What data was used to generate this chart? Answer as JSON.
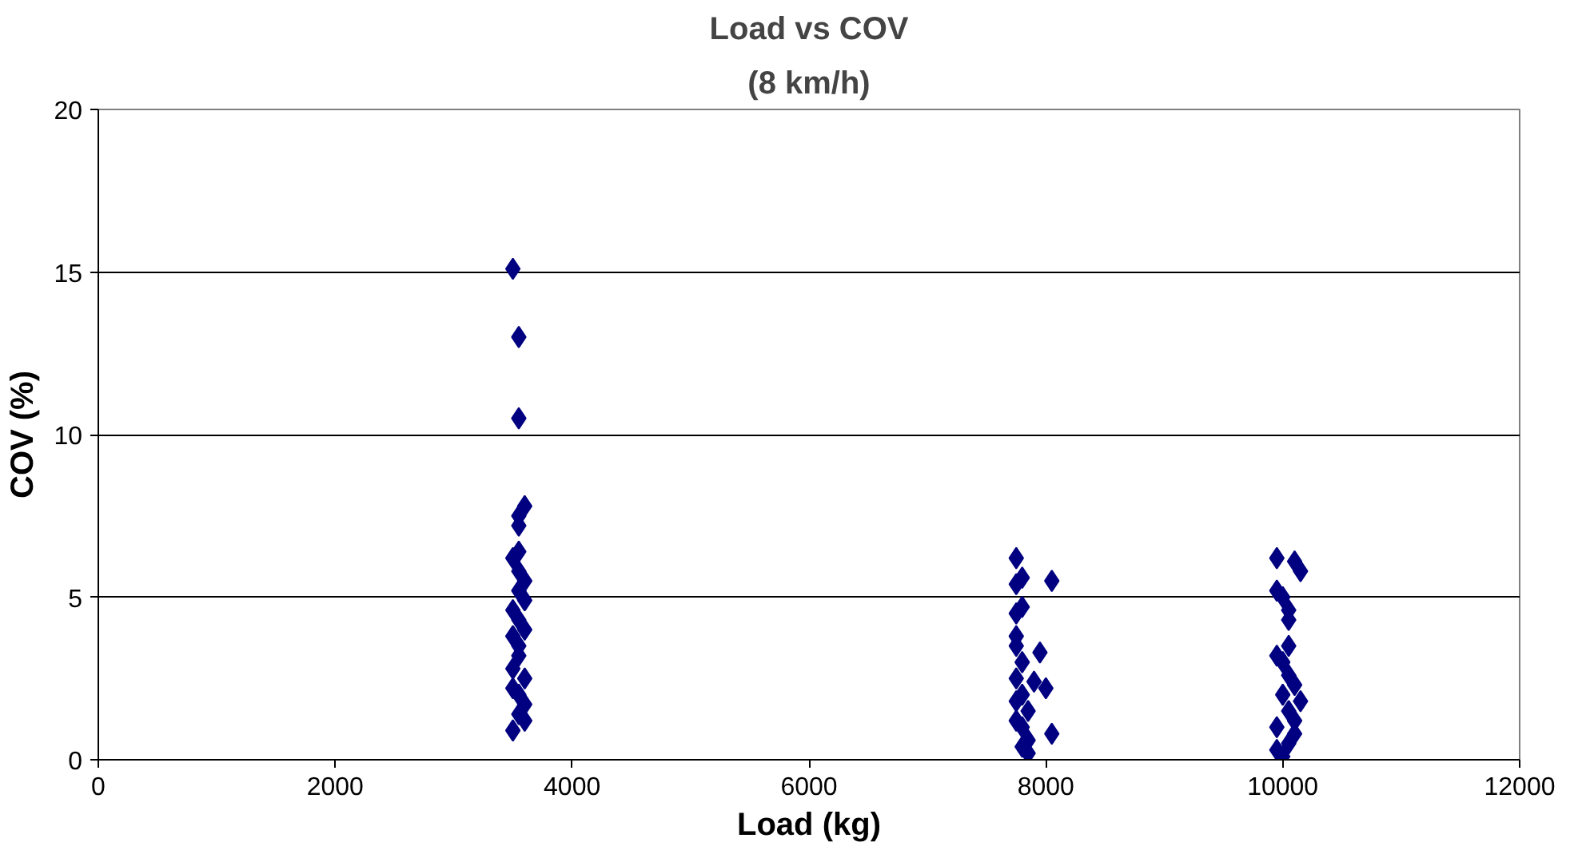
{
  "chart_data": {
    "type": "scatter",
    "title": "Load vs COV",
    "subtitle": "(8 km/h)",
    "xlabel": "Load (kg)",
    "ylabel": "COV (%)",
    "xlim": [
      0,
      12000
    ],
    "xticks": [
      0,
      2000,
      4000,
      6000,
      8000,
      10000,
      12000
    ],
    "ylim": [
      0,
      20
    ],
    "yticks": [
      0,
      5,
      10,
      15,
      20
    ],
    "grid": "y",
    "marker": "diamond",
    "series": [
      {
        "color": "#000080",
        "x": [
          3500,
          3550,
          3550,
          3600,
          3550,
          3550,
          3550,
          3500,
          3550,
          3600,
          3550,
          3600,
          3500,
          3550,
          3600,
          3500,
          3550,
          3550,
          3500,
          3600,
          3500,
          3550,
          3600,
          3550,
          3600,
          3500
        ],
        "values": [
          15.1,
          13.0,
          10.5,
          7.8,
          7.5,
          7.2,
          6.4,
          6.2,
          5.8,
          5.5,
          5.2,
          4.9,
          4.6,
          4.3,
          4.0,
          3.8,
          3.5,
          3.2,
          2.8,
          2.5,
          2.2,
          2.0,
          1.7,
          1.4,
          1.2,
          0.9
        ]
      },
      {
        "color": "#000080",
        "x": [
          7750,
          7800,
          8050,
          7750,
          7800,
          7750,
          7750,
          7750,
          7950,
          7800,
          7750,
          7900,
          8000,
          7800,
          7750,
          7850,
          7750,
          7800,
          8050,
          7850,
          7800,
          7850
        ],
        "values": [
          6.2,
          5.6,
          5.5,
          5.4,
          4.7,
          4.5,
          3.8,
          3.5,
          3.3,
          3.0,
          2.5,
          2.4,
          2.2,
          2.0,
          1.8,
          1.5,
          1.2,
          1.0,
          0.8,
          0.6,
          0.4,
          0.2
        ]
      },
      {
        "color": "#000080",
        "x": [
          9950,
          10100,
          10150,
          9950,
          10000,
          10050,
          10050,
          10050,
          9950,
          10000,
          10050,
          10100,
          10000,
          10150,
          10050,
          10100,
          9950,
          10100,
          10050,
          9950,
          10000
        ],
        "values": [
          6.2,
          6.1,
          5.8,
          5.2,
          5.0,
          4.6,
          4.3,
          3.5,
          3.2,
          3.0,
          2.6,
          2.3,
          2.0,
          1.8,
          1.5,
          1.2,
          1.0,
          0.8,
          0.5,
          0.3,
          0.1
        ]
      }
    ]
  }
}
